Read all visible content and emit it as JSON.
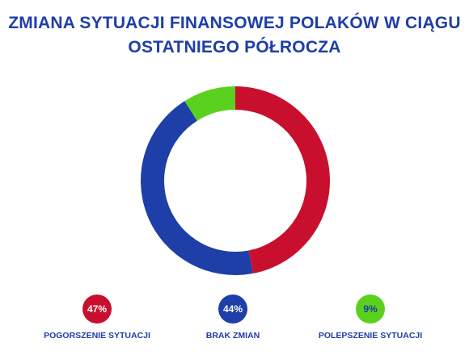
{
  "title": {
    "line1": "ZMIANA SYTUACJI FINANSOWEJ POLAKÓW W CIĄGU",
    "line2": "OSTATNIEGO PÓŁROCZA"
  },
  "chart_data": {
    "type": "pie",
    "donut": true,
    "title": "ZMIANA SYTUACJI FINANSOWEJ POLAKÓW W CIĄGU OSTATNIEGO PÓŁROCZA",
    "legend_position": "bottom",
    "slices": [
      {
        "label": "POGORSZENIE SYTUACJI",
        "value": 47,
        "value_text": "47%",
        "color": "#c8102e",
        "text_color": "#ffffff"
      },
      {
        "label": "BRAK ZMIAN",
        "value": 44,
        "value_text": "44%",
        "color": "#1e3ea8",
        "text_color": "#ffffff"
      },
      {
        "label": "POLEPSZENIE SYTUACJI",
        "value": 9,
        "value_text": "9%",
        "color": "#5ad11e",
        "text_color": "#1e3ea8"
      }
    ]
  }
}
